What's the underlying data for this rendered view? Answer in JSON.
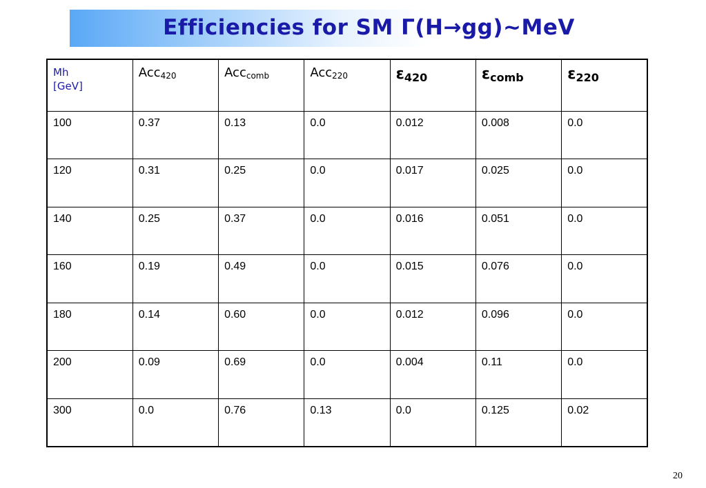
{
  "slide": {
    "title": "Efficiencies for SM Γ(H→gg)~MeV",
    "page_number": "20"
  },
  "table": {
    "headers": [
      {
        "kind": "mh",
        "line1": "Mh",
        "line2": "[GeV]"
      },
      {
        "kind": "acc",
        "base": "Acc",
        "sub": "420"
      },
      {
        "kind": "acc",
        "base": "Acc",
        "sub": "comb"
      },
      {
        "kind": "acc",
        "base": "Acc",
        "sub": "220"
      },
      {
        "kind": "eps",
        "base": "ε",
        "sub": "420"
      },
      {
        "kind": "eps",
        "base": "ε",
        "sub": "comb"
      },
      {
        "kind": "eps",
        "base": "ε",
        "sub": "220"
      }
    ],
    "rows": [
      [
        "100",
        "0.37",
        "0.13",
        "0.0",
        "0.012",
        "0.008",
        "0.0"
      ],
      [
        "120",
        "0.31",
        "0.25",
        "0.0",
        "0.017",
        "0.025",
        "0.0"
      ],
      [
        "140",
        "0.25",
        "0.37",
        "0.0",
        "0.016",
        "0.051",
        "0.0"
      ],
      [
        "160",
        "0.19",
        "0.49",
        "0.0",
        "0.015",
        "0.076",
        "0.0"
      ],
      [
        "180",
        "0.14",
        "0.60",
        "0.0",
        "0.012",
        "0.096",
        "0.0"
      ],
      [
        "200",
        "0.09",
        "0.69",
        "0.0",
        "0.004",
        "0.11",
        "0.0"
      ],
      [
        "300",
        "0.0",
        "0.76",
        "0.13",
        "0.0",
        "0.125",
        "0.02"
      ]
    ]
  },
  "colors": {
    "title_text": "#1a1aa8",
    "banner_gradient_start": "#5aa8f6",
    "header_mh_text": "#1a1aa8"
  }
}
